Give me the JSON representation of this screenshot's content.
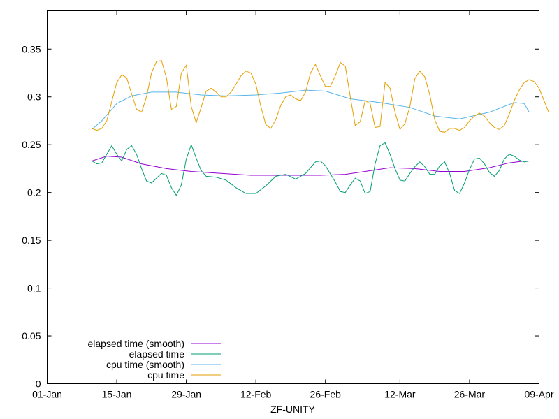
{
  "chart_data": {
    "type": "line",
    "title": "",
    "xlabel": "ZF-UNITY",
    "ylabel": "",
    "x_range": [
      "2024-01-01",
      "2024-04-09"
    ],
    "ylim": [
      0,
      0.39
    ],
    "grid": false,
    "legend_position": "bottom-left",
    "x_ticks": [
      {
        "date": "2024-01-01",
        "label": "01-Jan"
      },
      {
        "date": "2024-01-15",
        "label": "15-Jan"
      },
      {
        "date": "2024-01-29",
        "label": "29-Jan"
      },
      {
        "date": "2024-02-12",
        "label": "12-Feb"
      },
      {
        "date": "2024-02-26",
        "label": "26-Feb"
      },
      {
        "date": "2024-03-12",
        "label": "12-Mar"
      },
      {
        "date": "2024-03-26",
        "label": "26-Mar"
      },
      {
        "date": "2024-04-09",
        "label": "09-Apr"
      }
    ],
    "y_ticks": [
      {
        "value": 0,
        "label": "0"
      },
      {
        "value": 0.05,
        "label": "0.05"
      },
      {
        "value": 0.1,
        "label": "0.1"
      },
      {
        "value": 0.15,
        "label": "0.15"
      },
      {
        "value": 0.2,
        "label": "0.2"
      },
      {
        "value": 0.25,
        "label": "0.25"
      },
      {
        "value": 0.3,
        "label": "0.3"
      },
      {
        "value": 0.35,
        "label": "0.35"
      }
    ],
    "series": [
      {
        "name": "elapsed time (smooth)",
        "color": "#9400d3",
        "points": [
          [
            "2024-01-10",
            0.233
          ],
          [
            "2024-01-13",
            0.238
          ],
          [
            "2024-01-16",
            0.237
          ],
          [
            "2024-01-20",
            0.23
          ],
          [
            "2024-01-25",
            0.225
          ],
          [
            "2024-01-30",
            0.222
          ],
          [
            "2024-02-05",
            0.22
          ],
          [
            "2024-02-11",
            0.218
          ],
          [
            "2024-02-18",
            0.218
          ],
          [
            "2024-02-25",
            0.218
          ],
          [
            "2024-03-01",
            0.219
          ],
          [
            "2024-03-05",
            0.222
          ],
          [
            "2024-03-10",
            0.226
          ],
          [
            "2024-03-15",
            0.225
          ],
          [
            "2024-03-20",
            0.222
          ],
          [
            "2024-03-25",
            0.222
          ],
          [
            "2024-03-30",
            0.226
          ],
          [
            "2024-04-03",
            0.231
          ],
          [
            "2024-04-06",
            0.233
          ]
        ]
      },
      {
        "name": "elapsed time",
        "color": "#009e73",
        "points": [
          [
            "2024-01-10",
            0.233
          ],
          [
            "2024-01-11",
            0.23
          ],
          [
            "2024-01-12",
            0.231
          ],
          [
            "2024-01-13",
            0.24
          ],
          [
            "2024-01-14",
            0.249
          ],
          [
            "2024-01-15",
            0.24
          ],
          [
            "2024-01-16",
            0.233
          ],
          [
            "2024-01-17",
            0.245
          ],
          [
            "2024-01-18",
            0.249
          ],
          [
            "2024-01-19",
            0.24
          ],
          [
            "2024-01-20",
            0.225
          ],
          [
            "2024-01-21",
            0.212
          ],
          [
            "2024-01-22",
            0.21
          ],
          [
            "2024-01-23",
            0.215
          ],
          [
            "2024-01-24",
            0.22
          ],
          [
            "2024-01-25",
            0.218
          ],
          [
            "2024-01-26",
            0.205
          ],
          [
            "2024-01-27",
            0.197
          ],
          [
            "2024-01-28",
            0.208
          ],
          [
            "2024-01-29",
            0.235
          ],
          [
            "2024-01-30",
            0.25
          ],
          [
            "2024-01-31",
            0.236
          ],
          [
            "2024-02-01",
            0.223
          ],
          [
            "2024-02-02",
            0.217
          ],
          [
            "2024-02-04",
            0.216
          ],
          [
            "2024-02-06",
            0.213
          ],
          [
            "2024-02-08",
            0.205
          ],
          [
            "2024-02-10",
            0.199
          ],
          [
            "2024-02-12",
            0.199
          ],
          [
            "2024-02-14",
            0.207
          ],
          [
            "2024-02-16",
            0.217
          ],
          [
            "2024-02-18",
            0.219
          ],
          [
            "2024-02-20",
            0.214
          ],
          [
            "2024-02-22",
            0.22
          ],
          [
            "2024-02-24",
            0.232
          ],
          [
            "2024-02-25",
            0.233
          ],
          [
            "2024-02-26",
            0.228
          ],
          [
            "2024-02-28",
            0.211
          ],
          [
            "2024-02-29",
            0.201
          ],
          [
            "2024-03-01",
            0.2
          ],
          [
            "2024-03-02",
            0.208
          ],
          [
            "2024-03-03",
            0.215
          ],
          [
            "2024-03-04",
            0.212
          ],
          [
            "2024-03-05",
            0.199
          ],
          [
            "2024-03-06",
            0.201
          ],
          [
            "2024-03-07",
            0.23
          ],
          [
            "2024-03-08",
            0.249
          ],
          [
            "2024-03-09",
            0.252
          ],
          [
            "2024-03-10",
            0.24
          ],
          [
            "2024-03-11",
            0.225
          ],
          [
            "2024-03-12",
            0.213
          ],
          [
            "2024-03-13",
            0.212
          ],
          [
            "2024-03-14",
            0.22
          ],
          [
            "2024-03-15",
            0.227
          ],
          [
            "2024-03-16",
            0.232
          ],
          [
            "2024-03-17",
            0.227
          ],
          [
            "2024-03-18",
            0.219
          ],
          [
            "2024-03-19",
            0.219
          ],
          [
            "2024-03-20",
            0.228
          ],
          [
            "2024-03-21",
            0.232
          ],
          [
            "2024-03-22",
            0.22
          ],
          [
            "2024-03-23",
            0.202
          ],
          [
            "2024-03-24",
            0.199
          ],
          [
            "2024-03-25",
            0.21
          ],
          [
            "2024-03-26",
            0.224
          ],
          [
            "2024-03-27",
            0.235
          ],
          [
            "2024-03-28",
            0.236
          ],
          [
            "2024-03-29",
            0.23
          ],
          [
            "2024-03-30",
            0.221
          ],
          [
            "2024-03-31",
            0.217
          ],
          [
            "2024-04-01",
            0.223
          ],
          [
            "2024-04-02",
            0.235
          ],
          [
            "2024-04-03",
            0.24
          ],
          [
            "2024-04-04",
            0.238
          ],
          [
            "2024-04-05",
            0.234
          ],
          [
            "2024-04-06",
            0.232
          ],
          [
            "2024-04-07",
            0.233
          ]
        ]
      },
      {
        "name": "cpu time (smooth)",
        "color": "#56b4e9",
        "points": [
          [
            "2024-01-10",
            0.266
          ],
          [
            "2024-01-12",
            0.275
          ],
          [
            "2024-01-15",
            0.293
          ],
          [
            "2024-01-18",
            0.301
          ],
          [
            "2024-01-22",
            0.305
          ],
          [
            "2024-01-27",
            0.305
          ],
          [
            "2024-02-01",
            0.302
          ],
          [
            "2024-02-06",
            0.301
          ],
          [
            "2024-02-12",
            0.302
          ],
          [
            "2024-02-17",
            0.304
          ],
          [
            "2024-02-22",
            0.307
          ],
          [
            "2024-02-26",
            0.306
          ],
          [
            "2024-03-02",
            0.298
          ],
          [
            "2024-03-08",
            0.294
          ],
          [
            "2024-03-14",
            0.289
          ],
          [
            "2024-03-19",
            0.28
          ],
          [
            "2024-03-24",
            0.277
          ],
          [
            "2024-03-30",
            0.284
          ],
          [
            "2024-04-04",
            0.294
          ],
          [
            "2024-04-06",
            0.293
          ],
          [
            "2024-04-07",
            0.284
          ]
        ]
      },
      {
        "name": "cpu time",
        "color": "#e69f00",
        "points": [
          [
            "2024-01-10",
            0.267
          ],
          [
            "2024-01-11",
            0.265
          ],
          [
            "2024-01-12",
            0.267
          ],
          [
            "2024-01-13",
            0.275
          ],
          [
            "2024-01-14",
            0.295
          ],
          [
            "2024-01-15",
            0.315
          ],
          [
            "2024-01-16",
            0.323
          ],
          [
            "2024-01-17",
            0.32
          ],
          [
            "2024-01-18",
            0.303
          ],
          [
            "2024-01-19",
            0.287
          ],
          [
            "2024-01-20",
            0.284
          ],
          [
            "2024-01-21",
            0.3
          ],
          [
            "2024-01-22",
            0.325
          ],
          [
            "2024-01-23",
            0.337
          ],
          [
            "2024-01-24",
            0.338
          ],
          [
            "2024-01-25",
            0.32
          ],
          [
            "2024-01-26",
            0.287
          ],
          [
            "2024-01-27",
            0.29
          ],
          [
            "2024-01-28",
            0.325
          ],
          [
            "2024-01-29",
            0.333
          ],
          [
            "2024-01-30",
            0.29
          ],
          [
            "2024-01-31",
            0.273
          ],
          [
            "2024-02-01",
            0.289
          ],
          [
            "2024-02-02",
            0.306
          ],
          [
            "2024-02-03",
            0.309
          ],
          [
            "2024-02-04",
            0.305
          ],
          [
            "2024-02-05",
            0.3
          ],
          [
            "2024-02-06",
            0.3
          ],
          [
            "2024-02-07",
            0.305
          ],
          [
            "2024-02-08",
            0.313
          ],
          [
            "2024-02-09",
            0.322
          ],
          [
            "2024-02-10",
            0.327
          ],
          [
            "2024-02-11",
            0.325
          ],
          [
            "2024-02-12",
            0.313
          ],
          [
            "2024-02-13",
            0.29
          ],
          [
            "2024-02-14",
            0.271
          ],
          [
            "2024-02-15",
            0.267
          ],
          [
            "2024-02-16",
            0.276
          ],
          [
            "2024-02-17",
            0.291
          ],
          [
            "2024-02-18",
            0.3
          ],
          [
            "2024-02-19",
            0.302
          ],
          [
            "2024-02-20",
            0.298
          ],
          [
            "2024-02-21",
            0.296
          ],
          [
            "2024-02-22",
            0.305
          ],
          [
            "2024-02-23",
            0.325
          ],
          [
            "2024-02-24",
            0.334
          ],
          [
            "2024-02-25",
            0.322
          ],
          [
            "2024-02-26",
            0.311
          ],
          [
            "2024-02-27",
            0.311
          ],
          [
            "2024-02-28",
            0.322
          ],
          [
            "2024-02-29",
            0.336
          ],
          [
            "2024-03-01",
            0.332
          ],
          [
            "2024-03-02",
            0.3
          ],
          [
            "2024-03-03",
            0.27
          ],
          [
            "2024-03-04",
            0.274
          ],
          [
            "2024-03-05",
            0.296
          ],
          [
            "2024-03-06",
            0.293
          ],
          [
            "2024-03-07",
            0.268
          ],
          [
            "2024-03-08",
            0.269
          ],
          [
            "2024-03-09",
            0.315
          ],
          [
            "2024-03-10",
            0.309
          ],
          [
            "2024-03-11",
            0.284
          ],
          [
            "2024-03-12",
            0.266
          ],
          [
            "2024-03-13",
            0.272
          ],
          [
            "2024-03-14",
            0.29
          ],
          [
            "2024-03-15",
            0.319
          ],
          [
            "2024-03-16",
            0.327
          ],
          [
            "2024-03-17",
            0.321
          ],
          [
            "2024-03-18",
            0.302
          ],
          [
            "2024-03-19",
            0.276
          ],
          [
            "2024-03-20",
            0.264
          ],
          [
            "2024-03-21",
            0.263
          ],
          [
            "2024-03-22",
            0.267
          ],
          [
            "2024-03-23",
            0.267
          ],
          [
            "2024-03-24",
            0.265
          ],
          [
            "2024-03-25",
            0.268
          ],
          [
            "2024-03-26",
            0.275
          ],
          [
            "2024-03-27",
            0.28
          ],
          [
            "2024-03-28",
            0.283
          ],
          [
            "2024-03-29",
            0.28
          ],
          [
            "2024-03-30",
            0.273
          ],
          [
            "2024-03-31",
            0.268
          ],
          [
            "2024-04-01",
            0.266
          ],
          [
            "2024-04-02",
            0.27
          ],
          [
            "2024-04-03",
            0.282
          ],
          [
            "2024-04-04",
            0.296
          ],
          [
            "2024-04-05",
            0.307
          ],
          [
            "2024-04-06",
            0.315
          ],
          [
            "2024-04-07",
            0.318
          ],
          [
            "2024-04-08",
            0.316
          ],
          [
            "2024-04-09",
            0.309
          ],
          [
            "2024-04-10",
            0.296
          ],
          [
            "2024-04-11",
            0.283
          ]
        ]
      }
    ]
  }
}
